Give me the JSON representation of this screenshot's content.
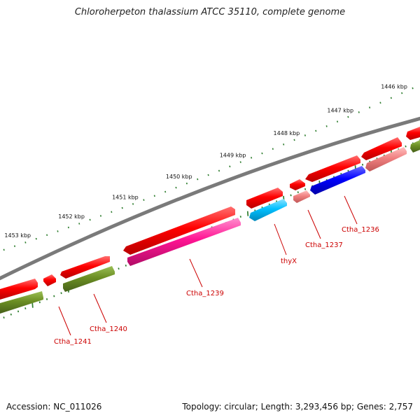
{
  "title": "Chloroherpeton thalassium ATCC 35110, complete genome",
  "footer": {
    "accession": "Accession: NC_011026",
    "summary": "Topology: circular; Length: 3,293,456 bp; Genes: 2,757"
  },
  "scale_labels": [
    {
      "text": "1446 kbp",
      "kbp": 1446
    },
    {
      "text": "1447 kbp",
      "kbp": 1447
    },
    {
      "text": "1448 kbp",
      "kbp": 1448
    },
    {
      "text": "1449 kbp",
      "kbp": 1449
    },
    {
      "text": "1450 kbp",
      "kbp": 1450
    },
    {
      "text": "1451 kbp",
      "kbp": 1451
    },
    {
      "text": "1452 kbp",
      "kbp": 1452
    },
    {
      "text": "1453 kbp",
      "kbp": 1453
    }
  ],
  "gene_labels": [
    {
      "text": "Ctha_1236",
      "color": "#cc0000"
    },
    {
      "text": "Ctha_1237",
      "color": "#cc0000"
    },
    {
      "text": "thyX",
      "color": "#cc0000"
    },
    {
      "text": "Ctha_1239",
      "color": "#cc0000"
    },
    {
      "text": "Ctha_1240",
      "color": "#cc0000"
    },
    {
      "text": "Ctha_1241",
      "color": "#cc0000"
    }
  ],
  "colors": {
    "backbone": "#7a7a7a",
    "cds_red": "#ff0000",
    "olive": "#6b8e23",
    "cyan": "#00bfff",
    "pink": "#ff1493",
    "light_red": "#f08080",
    "blue": "#0000ff",
    "tick_green": "#2e7d2e"
  }
}
